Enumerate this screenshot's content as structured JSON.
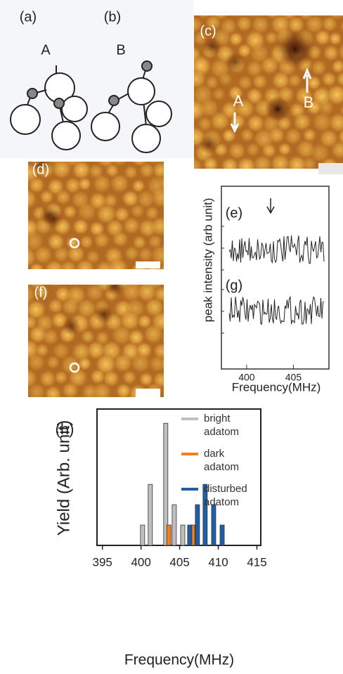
{
  "panels": {
    "a": "(a)",
    "b": "(b)",
    "c": "(c)",
    "d": "(d)",
    "e": "(e)",
    "f": "(f)",
    "g": "(g)"
  },
  "molecule_labels": [
    "A",
    "B"
  ],
  "image_labels": [
    "A",
    "B"
  ],
  "spectra": {
    "xlabel": "Frequency(MHz)",
    "ylabel": "peak intensity (arb unit)",
    "xlim": [
      397.3,
      408.8
    ],
    "xticks": [
      400,
      405
    ]
  },
  "chart_data": {
    "type": "bar",
    "title": "(h)",
    "xlabel": "Frequency(MHz)",
    "ylabel": "Yield (Arb. unit)",
    "xlim": [
      394.3,
      415.5
    ],
    "xticks": [
      395,
      400,
      405,
      410,
      415
    ],
    "ylim": [
      0,
      6.7
    ],
    "series": [
      {
        "name": "bright adatom",
        "color": "#c0c0c0",
        "x": [
          400.2,
          401.2,
          403.2,
          404.3,
          405.4
        ],
        "values": [
          1,
          3,
          6,
          2,
          1
        ]
      },
      {
        "name": "dark adatom",
        "color": "#f08020",
        "x": [
          403.6,
          406.7
        ],
        "values": [
          1,
          1
        ]
      },
      {
        "name": "disturbed adatom",
        "color": "#1f5fa8",
        "x": [
          406.3,
          407.3,
          408.3,
          409.4,
          410.5
        ],
        "values": [
          1,
          2,
          3,
          2,
          1
        ]
      }
    ]
  }
}
